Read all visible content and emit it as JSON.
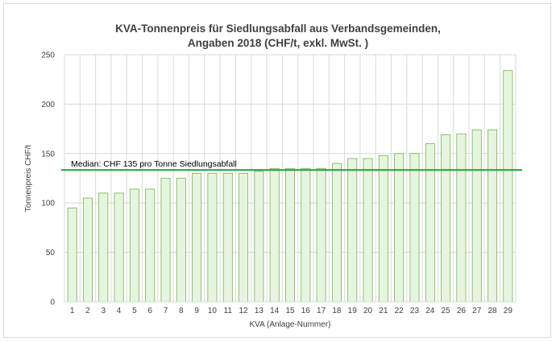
{
  "chart_data": {
    "type": "bar",
    "title": "KVA-Tonnenpreis für Siedlungsabfall aus Verbandsgemeinden,",
    "subtitle": "Angaben 2018 (CHF/t, exkl. MwSt. )",
    "xlabel": "KVA (Anlage-Nummer)",
    "ylabel": "Tonnenpreis CHF/t",
    "ylim": [
      0,
      250
    ],
    "yticks": [
      "0",
      "50",
      "100",
      "150",
      "200",
      "250"
    ],
    "grid": true,
    "categories": [
      "1",
      "2",
      "3",
      "4",
      "5",
      "6",
      "7",
      "8",
      "9",
      "10",
      "11",
      "12",
      "13",
      "14",
      "15",
      "16",
      "17",
      "18",
      "19",
      "20",
      "21",
      "22",
      "23",
      "24",
      "25",
      "26",
      "27",
      "28",
      "29"
    ],
    "values": [
      95,
      105,
      110,
      110,
      114,
      114,
      125,
      125,
      130,
      130,
      130,
      130,
      132,
      135,
      135,
      135,
      135,
      140,
      145,
      145,
      148,
      150,
      150,
      160,
      169,
      170,
      174,
      174,
      234
    ],
    "median": {
      "value": 135,
      "label": "Median: CHF 135 pro Tonne Siedlungsabfall"
    },
    "colors": {
      "bar_fill": "#e6f5df",
      "bar_stroke": "#70b84a",
      "median_line": "#1e9e3e",
      "grid": "#d9d9d9",
      "text": "#404040"
    }
  }
}
